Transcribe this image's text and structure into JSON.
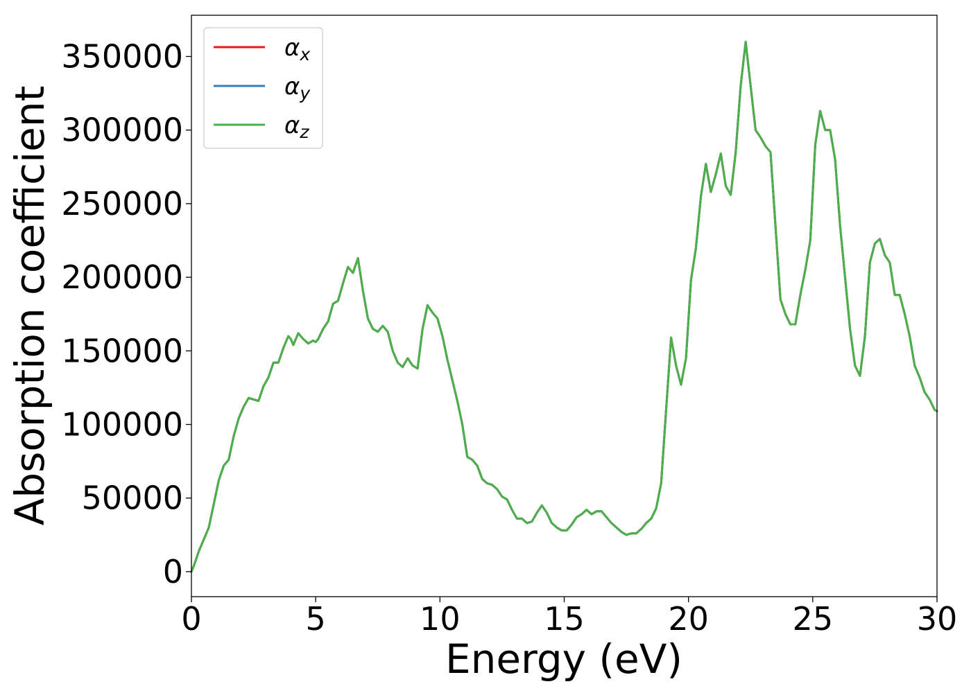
{
  "chart_data": {
    "type": "line",
    "title": "",
    "xlabel": "Energy (eV)",
    "ylabel": "Absorption coefficient",
    "xlim": [
      0,
      30
    ],
    "ylim": [
      -17000,
      378000
    ],
    "x_ticks": [
      0,
      5,
      10,
      15,
      20,
      25,
      30
    ],
    "x_tick_labels": [
      "0",
      "5",
      "10",
      "15",
      "20",
      "25",
      "30"
    ],
    "y_ticks": [
      0,
      50000,
      100000,
      150000,
      200000,
      250000,
      300000,
      350000
    ],
    "y_tick_labels": [
      "0",
      "50000",
      "100000",
      "150000",
      "200000",
      "250000",
      "300000",
      "350000"
    ],
    "grid": false,
    "legend_position": "top-left",
    "x": [
      0,
      0.1,
      0.3,
      0.5,
      0.7,
      0.9,
      1.1,
      1.3,
      1.5,
      1.7,
      1.9,
      2.1,
      2.3,
      2.5,
      2.7,
      2.9,
      3.1,
      3.3,
      3.5,
      3.7,
      3.9,
      4.0,
      4.1,
      4.3,
      4.5,
      4.7,
      4.9,
      5.0,
      5.1,
      5.3,
      5.5,
      5.7,
      5.9,
      6.1,
      6.3,
      6.5,
      6.7,
      6.9,
      7.1,
      7.3,
      7.5,
      7.7,
      7.9,
      8.1,
      8.3,
      8.5,
      8.7,
      8.9,
      9.1,
      9.3,
      9.5,
      9.7,
      9.9,
      10.1,
      10.3,
      10.5,
      10.7,
      10.9,
      11.1,
      11.3,
      11.5,
      11.7,
      11.9,
      12.1,
      12.3,
      12.5,
      12.7,
      12.9,
      13.1,
      13.3,
      13.5,
      13.7,
      13.9,
      14.1,
      14.3,
      14.5,
      14.7,
      14.9,
      15.1,
      15.3,
      15.5,
      15.7,
      15.9,
      16.1,
      16.3,
      16.5,
      16.7,
      16.9,
      17.1,
      17.3,
      17.5,
      17.7,
      17.9,
      18.1,
      18.3,
      18.5,
      18.7,
      18.9,
      19.1,
      19.3,
      19.5,
      19.7,
      19.9,
      20.1,
      20.3,
      20.5,
      20.7,
      20.9,
      21.1,
      21.3,
      21.5,
      21.7,
      21.9,
      22.1,
      22.3,
      22.5,
      22.7,
      22.9,
      23.1,
      23.3,
      23.5,
      23.7,
      23.9,
      24.1,
      24.3,
      24.5,
      24.7,
      24.9,
      25.1,
      25.3,
      25.5,
      25.7,
      25.9,
      26.1,
      26.3,
      26.5,
      26.7,
      26.9,
      27.1,
      27.3,
      27.5,
      27.7,
      27.9,
      28.1,
      28.3,
      28.5,
      28.7,
      28.9,
      29.1,
      29.3,
      29.5,
      29.7,
      29.9,
      30.0
    ],
    "series": [
      {
        "name": "α_x",
        "name_base": "α",
        "name_sub": "x",
        "color": "#e41a1c",
        "values": [
          0,
          4000,
          14000,
          22000,
          30000,
          46000,
          62000,
          72000,
          76000,
          92000,
          104000,
          112000,
          118000,
          117000,
          116000,
          126000,
          132000,
          142000,
          142000,
          152000,
          160000,
          158000,
          154000,
          162000,
          158000,
          155000,
          157000,
          156000,
          158000,
          165000,
          170000,
          182000,
          184000,
          196000,
          207000,
          203000,
          213000,
          191000,
          172000,
          165000,
          163000,
          167000,
          163000,
          150000,
          142000,
          139000,
          145000,
          140000,
          138000,
          165000,
          181000,
          176000,
          172000,
          160000,
          144000,
          130000,
          116000,
          100000,
          78000,
          76000,
          72000,
          63000,
          60000,
          59000,
          56000,
          51000,
          49000,
          42000,
          36000,
          36000,
          33000,
          34000,
          40000,
          45000,
          40000,
          33000,
          30000,
          28000,
          28000,
          32000,
          37000,
          39000,
          42000,
          39000,
          41000,
          41000,
          37000,
          33000,
          30000,
          27000,
          25000,
          26000,
          26000,
          29000,
          33000,
          36000,
          43000,
          60000,
          110000,
          159000,
          140000,
          127000,
          145000,
          198000,
          220000,
          255000,
          277000,
          258000,
          270000,
          284000,
          262000,
          256000,
          285000,
          330000,
          360000,
          330000,
          300000,
          295000,
          289000,
          285000,
          235000,
          185000,
          175000,
          168000,
          168000,
          188000,
          205000,
          225000,
          290000,
          313000,
          300000,
          300000,
          280000,
          235000,
          200000,
          165000,
          140000,
          133000,
          160000,
          210000,
          223000,
          226000,
          215000,
          210000,
          188000,
          188000,
          175000,
          160000,
          140000,
          132000,
          122000,
          117000,
          110000,
          109000
        ]
      },
      {
        "name": "α_y",
        "name_base": "α",
        "name_sub": "y",
        "color": "#377eb8",
        "values": [
          0,
          4000,
          14000,
          22000,
          30000,
          46000,
          62000,
          72000,
          76000,
          92000,
          104000,
          112000,
          118000,
          117000,
          116000,
          126000,
          132000,
          142000,
          142000,
          152000,
          160000,
          158000,
          154000,
          162000,
          158000,
          155000,
          157000,
          156000,
          158000,
          165000,
          170000,
          182000,
          184000,
          196000,
          207000,
          203000,
          213000,
          191000,
          172000,
          165000,
          163000,
          167000,
          163000,
          150000,
          142000,
          139000,
          145000,
          140000,
          138000,
          165000,
          181000,
          176000,
          172000,
          160000,
          144000,
          130000,
          116000,
          100000,
          78000,
          76000,
          72000,
          63000,
          60000,
          59000,
          56000,
          51000,
          49000,
          42000,
          36000,
          36000,
          33000,
          34000,
          40000,
          45000,
          40000,
          33000,
          30000,
          28000,
          28000,
          32000,
          37000,
          39000,
          42000,
          39000,
          41000,
          41000,
          37000,
          33000,
          30000,
          27000,
          25000,
          26000,
          26000,
          29000,
          33000,
          36000,
          43000,
          60000,
          110000,
          159000,
          140000,
          127000,
          145000,
          198000,
          220000,
          255000,
          277000,
          258000,
          270000,
          284000,
          262000,
          256000,
          285000,
          330000,
          360000,
          330000,
          300000,
          295000,
          289000,
          285000,
          235000,
          185000,
          175000,
          168000,
          168000,
          188000,
          205000,
          225000,
          290000,
          313000,
          300000,
          300000,
          280000,
          235000,
          200000,
          165000,
          140000,
          133000,
          160000,
          210000,
          223000,
          226000,
          215000,
          210000,
          188000,
          188000,
          175000,
          160000,
          140000,
          132000,
          122000,
          117000,
          110000,
          109000
        ]
      },
      {
        "name": "α_z",
        "name_base": "α",
        "name_sub": "z",
        "color": "#4daf4a",
        "values": [
          0,
          4000,
          14000,
          22000,
          30000,
          46000,
          62000,
          72000,
          76000,
          92000,
          104000,
          112000,
          118000,
          117000,
          116000,
          126000,
          132000,
          142000,
          142000,
          152000,
          160000,
          158000,
          154000,
          162000,
          158000,
          155000,
          157000,
          156000,
          158000,
          165000,
          170000,
          182000,
          184000,
          196000,
          207000,
          203000,
          213000,
          191000,
          172000,
          165000,
          163000,
          167000,
          163000,
          150000,
          142000,
          139000,
          145000,
          140000,
          138000,
          165000,
          181000,
          176000,
          172000,
          160000,
          144000,
          130000,
          116000,
          100000,
          78000,
          76000,
          72000,
          63000,
          60000,
          59000,
          56000,
          51000,
          49000,
          42000,
          36000,
          36000,
          33000,
          34000,
          40000,
          45000,
          40000,
          33000,
          30000,
          28000,
          28000,
          32000,
          37000,
          39000,
          42000,
          39000,
          41000,
          41000,
          37000,
          33000,
          30000,
          27000,
          25000,
          26000,
          26000,
          29000,
          33000,
          36000,
          43000,
          60000,
          110000,
          159000,
          140000,
          127000,
          145000,
          198000,
          220000,
          255000,
          277000,
          258000,
          270000,
          284000,
          262000,
          256000,
          285000,
          330000,
          360000,
          330000,
          300000,
          295000,
          289000,
          285000,
          235000,
          185000,
          175000,
          168000,
          168000,
          188000,
          205000,
          225000,
          290000,
          313000,
          300000,
          300000,
          280000,
          235000,
          200000,
          165000,
          140000,
          133000,
          160000,
          210000,
          223000,
          226000,
          215000,
          210000,
          188000,
          188000,
          175000,
          160000,
          140000,
          132000,
          122000,
          117000,
          110000,
          109000
        ]
      }
    ]
  }
}
